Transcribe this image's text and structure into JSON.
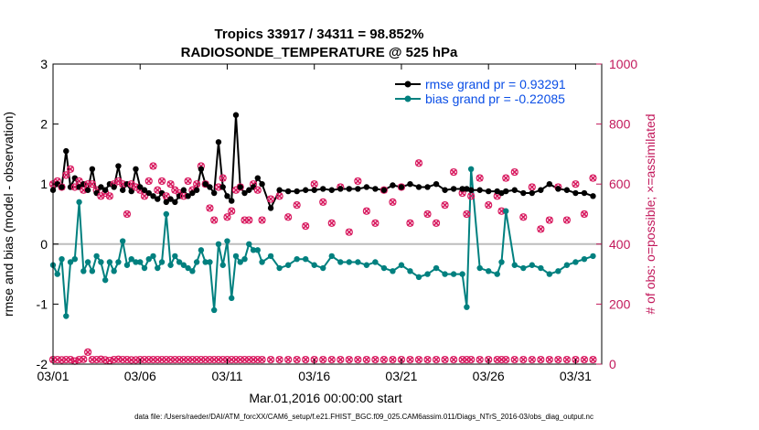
{
  "chart_data": {
    "type": "line",
    "title_line1": "Tropics 33917 / 34311 = 98.852%",
    "title_line2": "RADIOSONDE_TEMPERATURE @ 525 hPa",
    "xlabel": "Mar.01,2016 00:00:00 start",
    "ylabel_left": "rmse and bias (model - observation)",
    "ylabel_right": "# of obs: o=possible; ×=assimilated",
    "footer": "data file: /Users/raeder/DAI/ATM_forcXX/CAM6_setup/f.e21.FHIST_BGC.f09_025.CAM6assim.011/Diags_NTrS_2016-03/obs_diag_output.nc",
    "xlim": [
      0,
      31.5
    ],
    "ylim_left": [
      -2,
      3
    ],
    "ylim_right": [
      0,
      1000
    ],
    "x_ticks": [
      {
        "x": 0,
        "label": "03/01"
      },
      {
        "x": 5,
        "label": "03/06"
      },
      {
        "x": 10,
        "label": "03/11"
      },
      {
        "x": 15,
        "label": "03/16"
      },
      {
        "x": 20,
        "label": "03/21"
      },
      {
        "x": 25,
        "label": "03/26"
      },
      {
        "x": 30,
        "label": "03/31"
      }
    ],
    "y_left_ticks": [
      {
        "v": 3,
        "label": "3"
      },
      {
        "v": 2,
        "label": "2"
      },
      {
        "v": 1,
        "label": "1"
      },
      {
        "v": 0,
        "label": "0"
      },
      {
        "v": -1,
        "label": "-1"
      },
      {
        "v": -2,
        "label": "-2"
      }
    ],
    "y_right_ticks": [
      {
        "v": 1000,
        "label": "1000"
      },
      {
        "v": 800,
        "label": "800"
      },
      {
        "v": 600,
        "label": "600"
      },
      {
        "v": 400,
        "label": "400"
      },
      {
        "v": 200,
        "label": "200"
      },
      {
        "v": 0,
        "label": "0"
      }
    ],
    "reference_line_y": 0,
    "legend": [
      {
        "label": "rmse grand pr = 0.93291",
        "color": "#000000"
      },
      {
        "label": "bias grand pr = -0.22085",
        "color": "#00807f"
      }
    ],
    "colors": {
      "rmse": "#000000",
      "bias": "#00807f",
      "obs": "#d81b60",
      "axis_right": "#c2185b",
      "zero_line": "#bdbdbd"
    },
    "x": [
      0.0,
      0.25,
      0.5,
      0.75,
      1.0,
      1.25,
      1.5,
      1.75,
      2.0,
      2.25,
      2.5,
      2.75,
      3.0,
      3.25,
      3.5,
      3.75,
      4.0,
      4.25,
      4.5,
      4.75,
      5.0,
      5.25,
      5.5,
      5.75,
      6.0,
      6.25,
      6.5,
      6.75,
      7.0,
      7.25,
      7.5,
      7.75,
      8.0,
      8.25,
      8.5,
      8.75,
      9.0,
      9.25,
      9.5,
      9.75,
      10.0,
      10.25,
      10.5,
      10.75,
      11.0,
      11.25,
      11.5,
      11.75,
      12.0,
      12.5,
      13.0,
      13.5,
      14.0,
      14.5,
      15.0,
      15.5,
      16.0,
      16.5,
      17.0,
      17.5,
      18.0,
      18.5,
      19.0,
      19.5,
      20.0,
      20.5,
      21.0,
      21.5,
      22.0,
      22.5,
      23.0,
      23.5,
      23.75,
      24.0,
      24.5,
      25.0,
      25.5,
      25.75,
      26.0,
      26.5,
      27.0,
      27.5,
      28.0,
      28.5,
      29.0,
      29.5,
      30.0,
      30.5,
      31.0
    ],
    "series": [
      {
        "name": "rmse",
        "values": [
          0.9,
          1.0,
          0.95,
          1.55,
          0.95,
          1.1,
          0.95,
          1.0,
          0.9,
          1.25,
          0.85,
          0.95,
          0.9,
          1.0,
          0.95,
          1.3,
          0.9,
          1.0,
          0.88,
          1.25,
          0.95,
          0.9,
          0.85,
          0.8,
          0.75,
          0.85,
          0.7,
          0.75,
          0.7,
          0.8,
          0.9,
          0.8,
          0.85,
          0.9,
          1.25,
          1.0,
          0.95,
          0.85,
          1.7,
          0.95,
          0.8,
          0.72,
          2.15,
          0.95,
          0.85,
          0.9,
          0.95,
          1.1,
          1.0,
          0.6,
          0.9,
          0.88,
          0.88,
          0.9,
          0.9,
          0.92,
          0.9,
          0.92,
          0.92,
          0.92,
          0.95,
          0.92,
          0.9,
          0.98,
          0.95,
          1.0,
          0.95,
          0.95,
          1.0,
          0.9,
          0.92,
          0.92,
          0.92,
          0.9,
          0.9,
          0.88,
          0.88,
          0.85,
          0.88,
          0.9,
          0.85,
          0.85,
          0.9,
          1.0,
          0.92,
          0.9,
          0.85,
          0.85,
          0.8
        ]
      },
      {
        "name": "bias",
        "values": [
          -0.35,
          -0.5,
          -0.25,
          -1.2,
          -0.3,
          -0.25,
          0.7,
          -0.45,
          -0.3,
          -0.45,
          -0.2,
          -0.3,
          -0.6,
          -0.3,
          -0.45,
          -0.3,
          0.05,
          -0.35,
          -0.25,
          -0.3,
          -0.3,
          -0.4,
          -0.25,
          -0.2,
          -0.4,
          -0.3,
          0.5,
          -0.35,
          -0.2,
          -0.3,
          -0.35,
          -0.4,
          -0.45,
          -0.3,
          -0.1,
          -0.3,
          -0.3,
          -1.1,
          0.0,
          -0.35,
          0.05,
          -0.9,
          -0.2,
          -0.3,
          -0.25,
          0.0,
          -0.1,
          -0.1,
          -0.3,
          -0.2,
          -0.4,
          -0.35,
          -0.25,
          -0.25,
          -0.35,
          -0.4,
          -0.2,
          -0.3,
          -0.3,
          -0.3,
          -0.35,
          -0.3,
          -0.4,
          -0.45,
          -0.35,
          -0.45,
          -0.55,
          -0.5,
          -0.4,
          -0.5,
          -0.5,
          -0.5,
          -1.05,
          1.25,
          -0.4,
          -0.45,
          -0.5,
          -0.3,
          0.55,
          -0.35,
          -0.4,
          -0.35,
          -0.4,
          -0.5,
          -0.45,
          -0.35,
          -0.3,
          -0.25,
          -0.2
        ]
      },
      {
        "name": "obs_possible",
        "values": [
          15,
          15,
          14,
          15,
          15,
          10,
          15,
          16,
          40,
          15,
          15,
          16,
          14,
          12,
          15,
          16,
          15,
          15,
          14,
          14,
          15,
          15,
          15,
          15,
          15,
          15,
          15,
          15,
          15,
          15,
          15,
          15,
          15,
          15,
          15,
          15,
          15,
          15,
          15,
          15,
          15,
          15,
          15,
          15,
          15,
          15,
          15,
          15,
          15,
          15,
          15,
          15,
          15,
          15,
          15,
          15,
          15,
          15,
          15,
          15,
          15,
          15,
          15,
          15,
          15,
          15,
          15,
          15,
          15,
          15,
          15,
          15,
          15,
          15,
          15,
          15,
          15,
          15,
          15,
          15,
          15,
          15,
          15,
          15,
          15,
          15,
          15,
          15,
          15
        ]
      },
      {
        "name": "obs_assimilated",
        "values": [
          600,
          610,
          590,
          630,
          650,
          590,
          610,
          580,
          600,
          600,
          580,
          560,
          570,
          560,
          600,
          610,
          600,
          500,
          600,
          590,
          580,
          560,
          610,
          660,
          580,
          610,
          560,
          600,
          580,
          570,
          560,
          610,
          580,
          600,
          660,
          600,
          520,
          480,
          590,
          620,
          490,
          510,
          580,
          590,
          480,
          480,
          600,
          580,
          480,
          550,
          560,
          490,
          530,
          460,
          600,
          540,
          470,
          590,
          440,
          610,
          510,
          470,
          580,
          540,
          590,
          470,
          670,
          500,
          470,
          530,
          640,
          570,
          500,
          560,
          620,
          530,
          560,
          510,
          620,
          640,
          490,
          590,
          450,
          480,
          590,
          480,
          600,
          500,
          620
        ]
      }
    ]
  }
}
